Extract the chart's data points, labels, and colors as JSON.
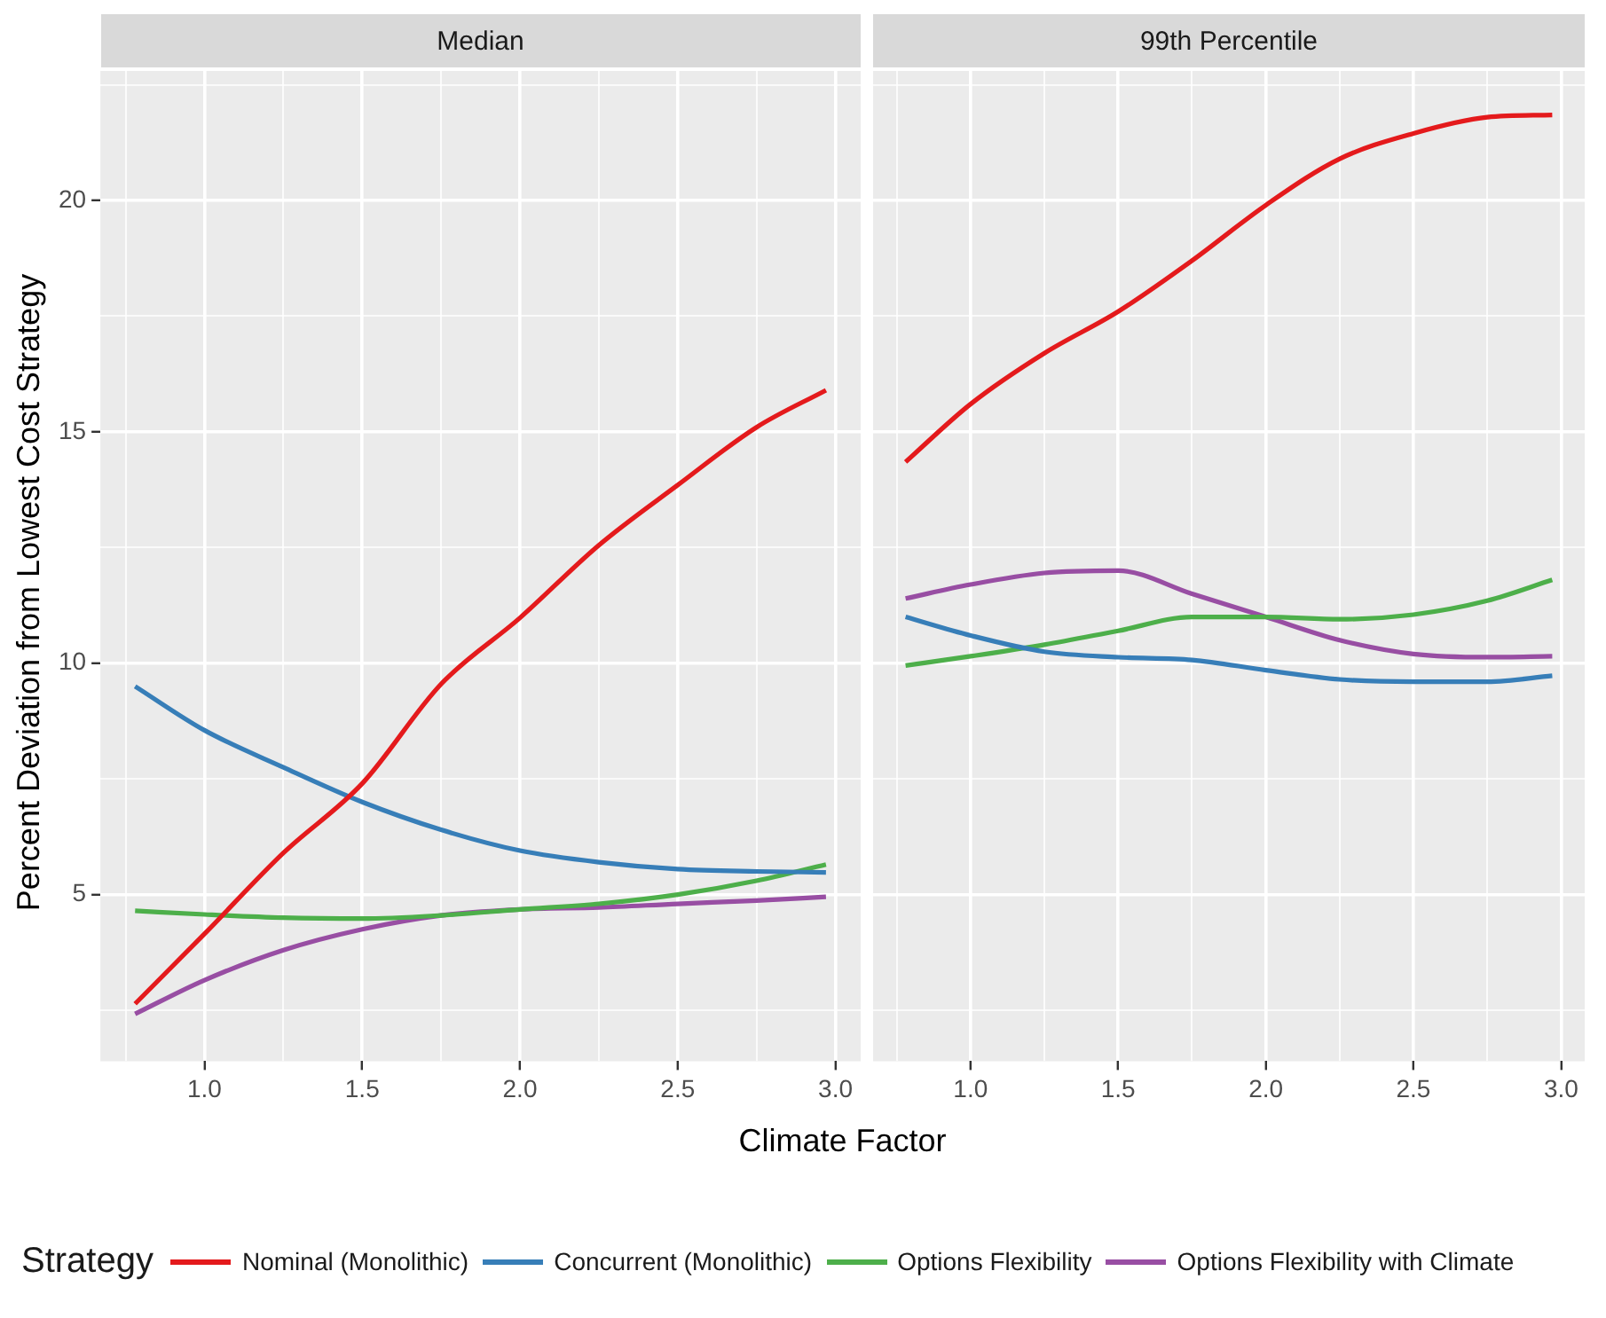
{
  "chart_data": [
    {
      "type": "line",
      "title": "Median",
      "xlabel": "Climate Factor",
      "ylabel": "Percent Deviation from Lowest Cost Strategy",
      "legend_title": "Strategy",
      "legend": "bottom",
      "grid": true,
      "x": [
        0.78,
        1.0,
        1.25,
        1.5,
        1.75,
        2.0,
        2.25,
        2.5,
        2.75,
        2.97
      ],
      "xlim": [
        0.67,
        3.08
      ],
      "xticks": [
        {
          "value": 0.75,
          "label": null
        },
        {
          "value": 1,
          "label": "1.0"
        },
        {
          "value": 1.25,
          "label": null
        },
        {
          "value": 1.5,
          "label": "1.5"
        },
        {
          "value": 1.75,
          "label": null
        },
        {
          "value": 2,
          "label": "2.0"
        },
        {
          "value": 2.25,
          "label": null
        },
        {
          "value": 2.5,
          "label": "2.5"
        },
        {
          "value": 2.75,
          "label": null
        },
        {
          "value": 3,
          "label": "3.0"
        }
      ],
      "ylim": [
        1.4,
        22.8
      ],
      "yticks": [
        {
          "value": 2.5,
          "label": null
        },
        5,
        {
          "value": 7.5,
          "label": null
        },
        10,
        {
          "value": 12.5,
          "label": null
        },
        15,
        {
          "value": 17.5,
          "label": null
        },
        20,
        {
          "value": 22.5,
          "label": null
        }
      ],
      "series": [
        {
          "name": "Nominal (Monolithic)",
          "color": "#e41a1c",
          "values": [
            2.64,
            4.15,
            5.9,
            7.4,
            9.55,
            10.98,
            12.55,
            13.85,
            15.1,
            15.9
          ]
        },
        {
          "name": "Concurrent (Monolithic)",
          "color": "#377eb8",
          "values": [
            9.5,
            8.55,
            7.75,
            7.0,
            6.4,
            5.95,
            5.7,
            5.55,
            5.5,
            5.48
          ]
        },
        {
          "name": "Options Flexibility",
          "color": "#4daf4a",
          "values": [
            4.65,
            4.57,
            4.5,
            4.48,
            4.55,
            4.68,
            4.8,
            5.0,
            5.3,
            5.65
          ]
        },
        {
          "name": "Options Flexibility with Climate",
          "color": "#984ea3",
          "values": [
            2.42,
            3.15,
            3.8,
            4.25,
            4.55,
            4.68,
            4.72,
            4.8,
            4.87,
            4.95
          ]
        }
      ]
    },
    {
      "type": "line",
      "title": "99th Percentile",
      "grid": true,
      "tick_labels": "x",
      "x": [
        0.78,
        1.0,
        1.25,
        1.5,
        1.75,
        2.0,
        2.25,
        2.5,
        2.75,
        2.97
      ],
      "xlim": [
        0.67,
        3.08
      ],
      "xticks": [
        {
          "value": 0.75,
          "label": null
        },
        {
          "value": 1,
          "label": "1.0"
        },
        {
          "value": 1.25,
          "label": null
        },
        {
          "value": 1.5,
          "label": "1.5"
        },
        {
          "value": 1.75,
          "label": null
        },
        {
          "value": 2,
          "label": "2.0"
        },
        {
          "value": 2.25,
          "label": null
        },
        {
          "value": 2.5,
          "label": "2.5"
        },
        {
          "value": 2.75,
          "label": null
        },
        {
          "value": 3,
          "label": "3.0"
        }
      ],
      "ylim": [
        1.4,
        22.8
      ],
      "yticks": [
        {
          "value": 2.5,
          "label": null
        },
        5,
        {
          "value": 7.5,
          "label": null
        },
        10,
        {
          "value": 12.5,
          "label": null
        },
        15,
        {
          "value": 17.5,
          "label": null
        },
        20,
        {
          "value": 22.5,
          "label": null
        }
      ],
      "series": [
        {
          "color": "#e41a1c",
          "values": [
            14.35,
            15.6,
            16.7,
            17.6,
            18.7,
            19.9,
            20.9,
            21.45,
            21.8,
            21.85
          ]
        },
        {
          "color": "#377eb8",
          "values": [
            11.0,
            10.6,
            10.25,
            10.13,
            10.07,
            9.85,
            9.65,
            9.6,
            9.6,
            9.73
          ]
        },
        {
          "color": "#4daf4a",
          "values": [
            9.95,
            10.15,
            10.4,
            10.7,
            11.0,
            11.0,
            10.95,
            11.05,
            11.35,
            11.8
          ]
        },
        {
          "color": "#984ea3",
          "values": [
            11.4,
            11.7,
            11.95,
            12.0,
            11.5,
            11.0,
            10.5,
            10.2,
            10.13,
            10.15
          ]
        }
      ]
    }
  ]
}
